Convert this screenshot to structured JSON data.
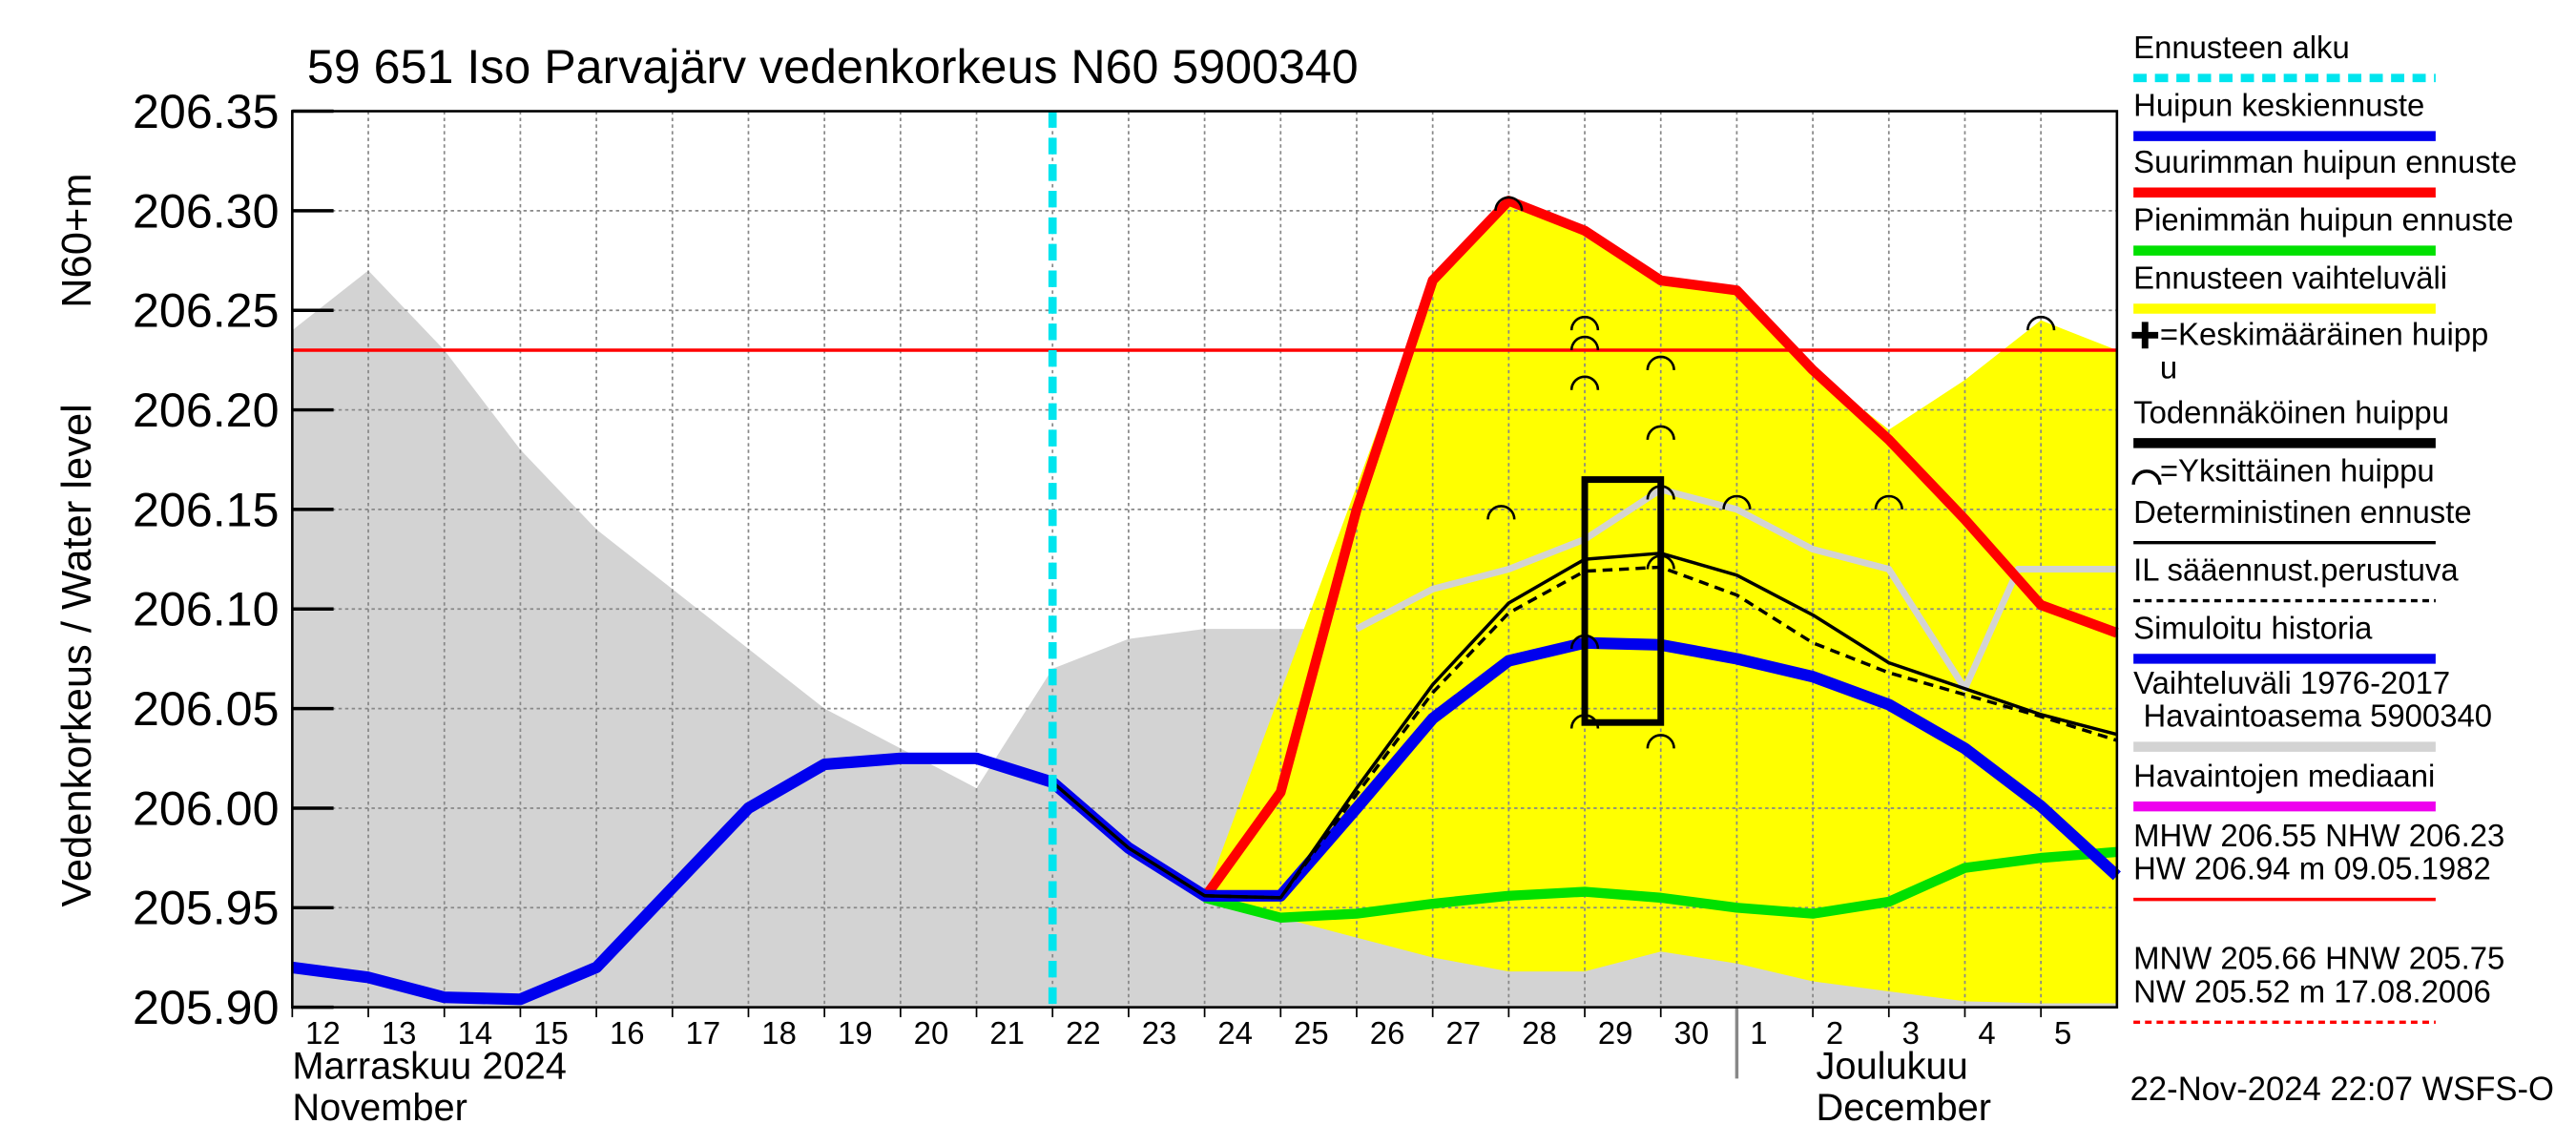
{
  "chart_data": {
    "type": "line",
    "title": "59 651 Iso Parvajärv vedenkorkeus N60 5900340",
    "ylabel": "Vedenkorkeus / Water level",
    "ylabel_unit": "N60+m",
    "xlim": [
      0,
      24
    ],
    "ylim": [
      205.9,
      206.35
    ],
    "yticks": [
      {
        "value": 205.9,
        "label": "205.90"
      },
      {
        "value": 205.95,
        "label": "205.95"
      },
      {
        "value": 206.0,
        "label": "206.00"
      },
      {
        "value": 206.05,
        "label": "206.05"
      },
      {
        "value": 206.1,
        "label": "206.10"
      },
      {
        "value": 206.15,
        "label": "206.15"
      },
      {
        "value": 206.2,
        "label": "206.20"
      },
      {
        "value": 206.25,
        "label": "206.25"
      },
      {
        "value": 206.3,
        "label": "206.30"
      },
      {
        "value": 206.35,
        "label": "206.35"
      }
    ],
    "xticks": [
      {
        "value": 0,
        "label": "12"
      },
      {
        "value": 1,
        "label": "13"
      },
      {
        "value": 2,
        "label": "14"
      },
      {
        "value": 3,
        "label": "15"
      },
      {
        "value": 4,
        "label": "16"
      },
      {
        "value": 5,
        "label": "17"
      },
      {
        "value": 6,
        "label": "18"
      },
      {
        "value": 7,
        "label": "19"
      },
      {
        "value": 8,
        "label": "20"
      },
      {
        "value": 9,
        "label": "21"
      },
      {
        "value": 10,
        "label": "22"
      },
      {
        "value": 11,
        "label": "23"
      },
      {
        "value": 12,
        "label": "24"
      },
      {
        "value": 13,
        "label": "25"
      },
      {
        "value": 14,
        "label": "26"
      },
      {
        "value": 15,
        "label": "27"
      },
      {
        "value": 16,
        "label": "28"
      },
      {
        "value": 17,
        "label": "29"
      },
      {
        "value": 18,
        "label": "30"
      },
      {
        "value": 19,
        "label": "1"
      },
      {
        "value": 20,
        "label": "2"
      },
      {
        "value": 21,
        "label": "3"
      },
      {
        "value": 22,
        "label": "4"
      },
      {
        "value": 23,
        "label": "5"
      }
    ],
    "grid": true,
    "months": [
      {
        "value": 0,
        "lines": [
          "Marraskuu 2024",
          "November"
        ]
      },
      {
        "value": 19,
        "lines": [
          "Joulukuu",
          "December"
        ]
      }
    ],
    "history_range": {
      "color": "#d3d3d3",
      "x": [
        0,
        1,
        2,
        3,
        4,
        5,
        6,
        7,
        8,
        9,
        10,
        11,
        12,
        14,
        24
      ],
      "upper": [
        206.24,
        206.27,
        206.23,
        206.18,
        206.14,
        206.11,
        206.08,
        206.05,
        206.03,
        206.01,
        206.07,
        206.085,
        206.09,
        206.09,
        206.09
      ]
    },
    "forecast_range": {
      "color": "#ffff00",
      "x": [
        12,
        13.5,
        15,
        16,
        17,
        18,
        19,
        20,
        21,
        22,
        23,
        24
      ],
      "upper": [
        205.955,
        206.11,
        206.265,
        206.305,
        206.29,
        206.265,
        206.26,
        206.22,
        206.19,
        206.215,
        206.245,
        206.23
      ],
      "lower": [
        205.955,
        205.94,
        205.925,
        205.918,
        205.918,
        205.928,
        205.922,
        205.913,
        205.908,
        205.903,
        205.902,
        205.902
      ]
    },
    "series": [
      {
        "color": "#d3d3d3",
        "width": 4,
        "dash": "none",
        "x": [
          14,
          15,
          16,
          17,
          18,
          19,
          20,
          21,
          22,
          22.7,
          24
        ],
        "values": [
          206.09,
          206.11,
          206.12,
          206.135,
          206.16,
          206.15,
          206.13,
          206.12,
          206.06,
          206.12,
          206.12
        ]
      },
      {
        "color": "#ff0000",
        "width": 6,
        "dash": "none",
        "x": [
          12,
          13,
          14,
          15,
          16,
          17,
          18,
          19,
          20,
          21,
          22,
          23,
          24
        ],
        "values": [
          205.955,
          206.008,
          206.15,
          206.265,
          206.305,
          206.29,
          206.265,
          206.26,
          206.22,
          206.185,
          206.145,
          206.102,
          206.088
        ]
      },
      {
        "color": "#00e000",
        "width": 6,
        "dash": "none",
        "x": [
          12,
          13,
          14,
          15,
          16,
          17,
          18,
          19,
          20,
          21,
          22,
          23,
          24
        ],
        "values": [
          205.955,
          205.945,
          205.947,
          205.952,
          205.956,
          205.958,
          205.955,
          205.95,
          205.947,
          205.953,
          205.97,
          205.975,
          205.978
        ]
      },
      {
        "color": "#0000ee",
        "width": 7,
        "dash": "none",
        "x": [
          0,
          1,
          2,
          3,
          4,
          5,
          6,
          7,
          8,
          9,
          10,
          11,
          12,
          13,
          14,
          15,
          16,
          17,
          18,
          19,
          20,
          21,
          22,
          23,
          24
        ],
        "values": [
          205.92,
          205.915,
          205.905,
          205.904,
          205.92,
          205.96,
          206.0,
          206.022,
          206.025,
          206.025,
          206.013,
          205.98,
          205.956,
          205.956,
          206.0,
          206.045,
          206.074,
          206.083,
          206.082,
          206.075,
          206.066,
          206.052,
          206.03,
          206.001,
          205.966
        ]
      },
      {
        "color": "#000000",
        "width": 2,
        "dash": "none",
        "x": [
          10,
          11,
          12,
          13,
          14,
          15,
          16,
          17,
          18,
          19,
          20,
          21,
          22,
          23,
          24
        ],
        "values": [
          206.013,
          205.98,
          205.956,
          205.955,
          206.01,
          206.062,
          206.103,
          206.125,
          206.128,
          206.117,
          206.097,
          206.073,
          206.06,
          206.047,
          206.037
        ]
      },
      {
        "color": "#000000",
        "width": 2,
        "dash": "6,4",
        "x": [
          12,
          13,
          14,
          15,
          16,
          17,
          18,
          19,
          20,
          21,
          22,
          23,
          24
        ],
        "values": [
          205.956,
          205.955,
          206.007,
          206.058,
          206.098,
          206.119,
          206.121,
          206.107,
          206.083,
          206.068,
          206.057,
          206.046,
          206.034
        ]
      }
    ],
    "nhw_line": {
      "value": 206.23,
      "color": "#ff0000"
    },
    "forecast_start": {
      "value": 10,
      "color": "#00e5ee"
    },
    "probable_peak": {
      "x": [
        17,
        18
      ],
      "y": [
        206.043,
        206.165
      ]
    },
    "single_peaks": {
      "x": [
        15.9,
        16,
        17,
        17,
        17,
        17,
        17,
        18,
        18,
        18,
        18,
        18,
        19,
        21,
        23
      ],
      "y": [
        206.15,
        206.305,
        206.245,
        206.235,
        206.215,
        206.085,
        206.045,
        206.225,
        206.19,
        206.16,
        206.125,
        206.035,
        206.155,
        206.155,
        206.245
      ]
    },
    "legend": [
      {
        "lines": [
          "Ennusteen alku"
        ],
        "color": "#00e5ee",
        "style": "dashed"
      },
      {
        "lines": [
          "Huipun keskiennuste"
        ],
        "color": "#0000ee",
        "style": "thick"
      },
      {
        "lines": [
          "Suurimman huipun ennuste"
        ],
        "color": "#ff0000",
        "style": "thick"
      },
      {
        "lines": [
          "Pienimmän huipun ennuste"
        ],
        "color": "#00e000",
        "style": "thick"
      },
      {
        "lines": [
          "Ennusteen vaihteluväli"
        ],
        "color": "#ffff00",
        "style": "thick"
      },
      {
        "lines": [
          "=Keskimääräinen huipp",
          "u"
        ],
        "color": "#000000",
        "style": "plus"
      },
      {
        "lines": [
          "Todennäköinen huippu"
        ],
        "color": "#000000",
        "style": "thick"
      },
      {
        "lines": [
          "=Yksittäinen huippu"
        ],
        "color": "#000000",
        "style": "arc"
      },
      {
        "lines": [
          "Deterministinen ennuste"
        ],
        "color": "#000000",
        "style": "thin"
      },
      {
        "lines": [
          "IL sääennust.perustuva"
        ],
        "color": "#000000",
        "style": "dotted"
      },
      {
        "lines": [
          "Simuloitu historia"
        ],
        "color": "#0000ee",
        "style": "thick"
      },
      {
        "lines": [
          "Vaihteluväli 1976-2017",
          "Havaintoasema 5900340"
        ],
        "color": "#d3d3d3",
        "style": "thick"
      },
      {
        "lines": [
          "Havaintojen mediaani"
        ],
        "color": "#ee00ee",
        "style": "thick"
      },
      {
        "lines": [
          "MHW 206.55 NHW 206.23",
          "HW 206.94 m 09.05.1982"
        ],
        "color": "#ff0000",
        "style": "thin"
      },
      {
        "lines": [
          "MNW 205.66 HNW 205.75",
          "NW 205.52 m 17.08.2006"
        ],
        "color": "#ff0000",
        "style": "dotted"
      }
    ],
    "timestamp": "22-Nov-2024 22:07 WSFS-O"
  }
}
